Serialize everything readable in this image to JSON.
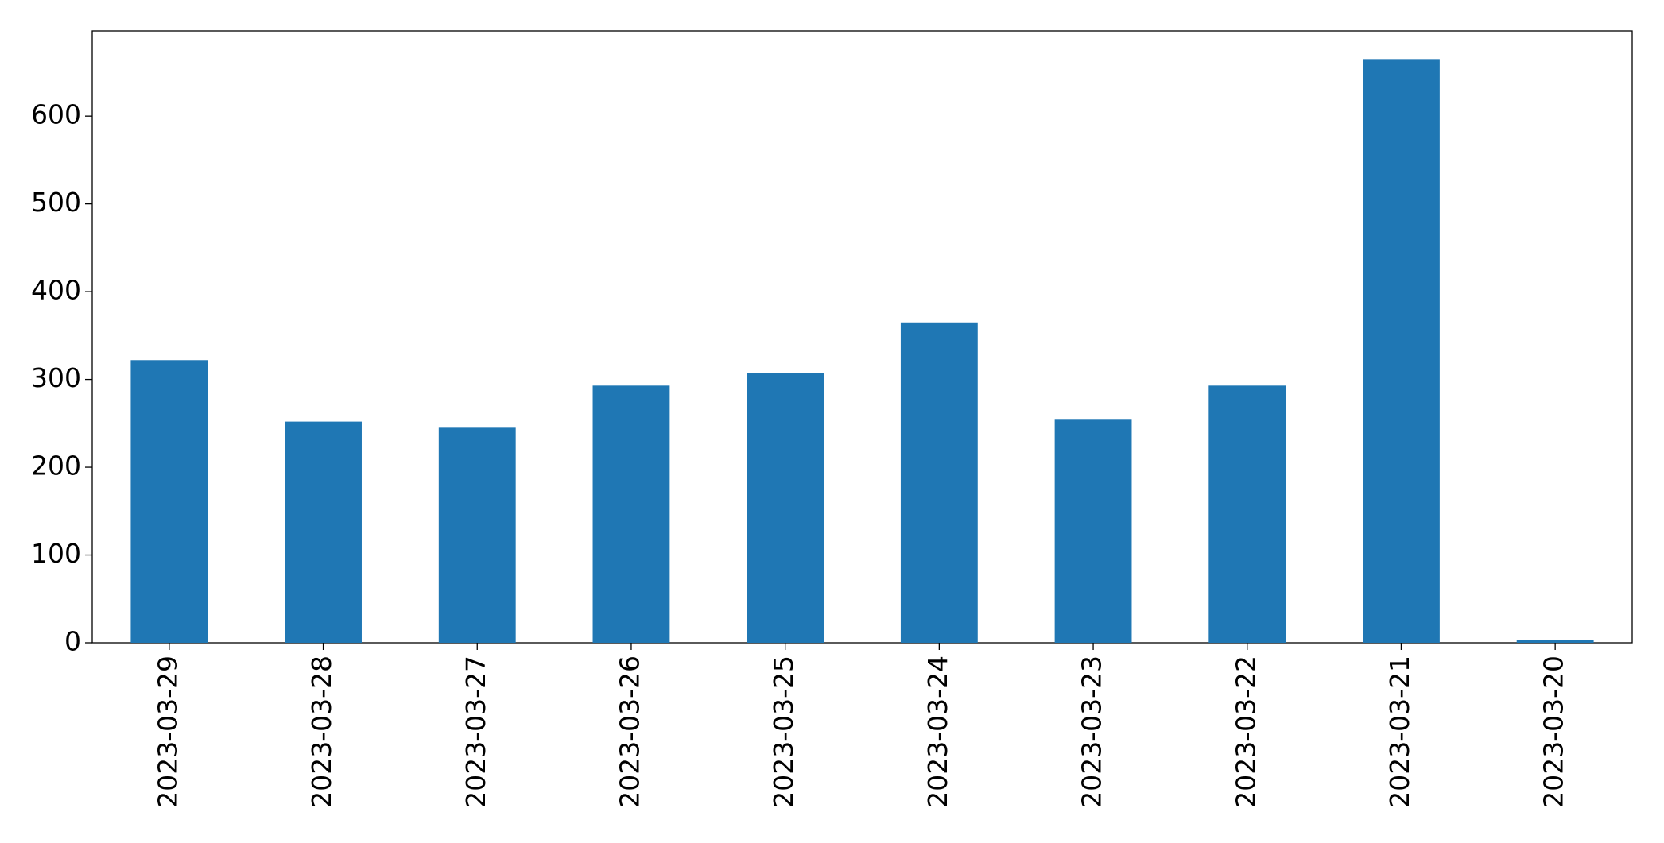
{
  "chart_data": {
    "type": "bar",
    "categories": [
      "2023-03-29",
      "2023-03-28",
      "2023-03-27",
      "2023-03-26",
      "2023-03-25",
      "2023-03-24",
      "2023-03-23",
      "2023-03-22",
      "2023-03-21",
      "2023-03-20"
    ],
    "values": [
      322,
      252,
      245,
      293,
      307,
      365,
      255,
      293,
      665,
      3
    ],
    "color": "#1f77b4",
    "ylim": [
      0,
      697
    ],
    "yticks": [
      0,
      100,
      200,
      300,
      400,
      500,
      600
    ],
    "grid": false
  }
}
